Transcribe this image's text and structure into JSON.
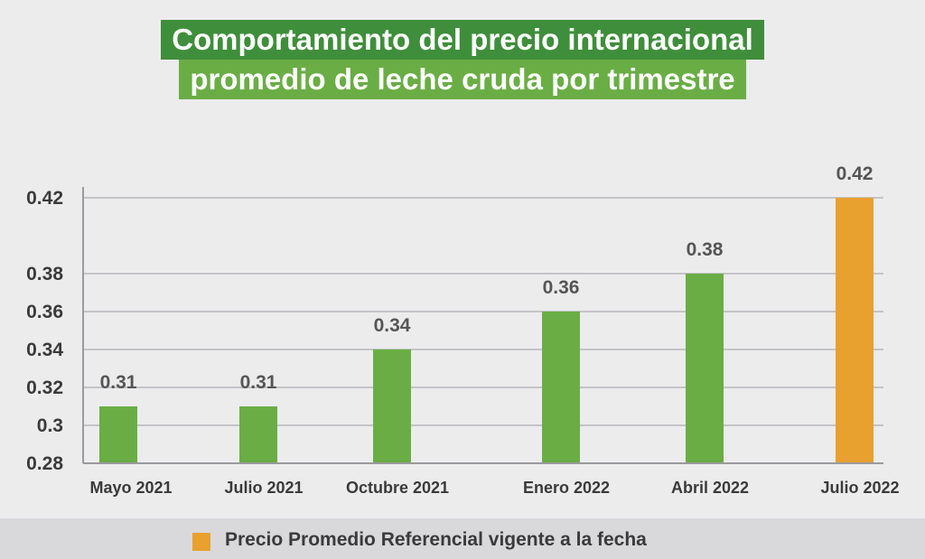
{
  "title": {
    "line1": "Comportamiento del precio internacional",
    "line2": "promedio de leche cruda por trimestre"
  },
  "colors": {
    "green_bar": "#6aad45",
    "orange_bar": "#e8a02f",
    "title_dark": "#3f8e3b",
    "title_light": "#6aad45"
  },
  "chart_data": {
    "type": "bar",
    "title": "Comportamiento del precio internacional promedio de leche cruda por trimestre",
    "categories": [
      "Mayo 2021",
      "Julio 2021",
      "Octubre 2021",
      "Enero 2022",
      "Abril 2022",
      "Julio 2022"
    ],
    "values": [
      0.31,
      0.31,
      0.34,
      0.36,
      0.38,
      0.42
    ],
    "data_labels": [
      "0.31",
      "0.31",
      "0.34",
      "0.36",
      "0.38",
      "0.42"
    ],
    "highlight_index": 5,
    "ylim": [
      0.28,
      0.42
    ],
    "yticks": [
      0.28,
      0.3,
      0.32,
      0.34,
      0.36,
      0.38,
      0.42
    ],
    "ytick_labels": [
      "0.28",
      "0.3",
      "0.32",
      "0.34",
      "0.36",
      "0.38",
      "0.42"
    ],
    "grid": true,
    "xlabel": "",
    "ylabel": ""
  },
  "legend": {
    "label": "Precio Promedio Referencial vigente a la fecha",
    "placement": "bottom",
    "color": "#e8a02f"
  }
}
